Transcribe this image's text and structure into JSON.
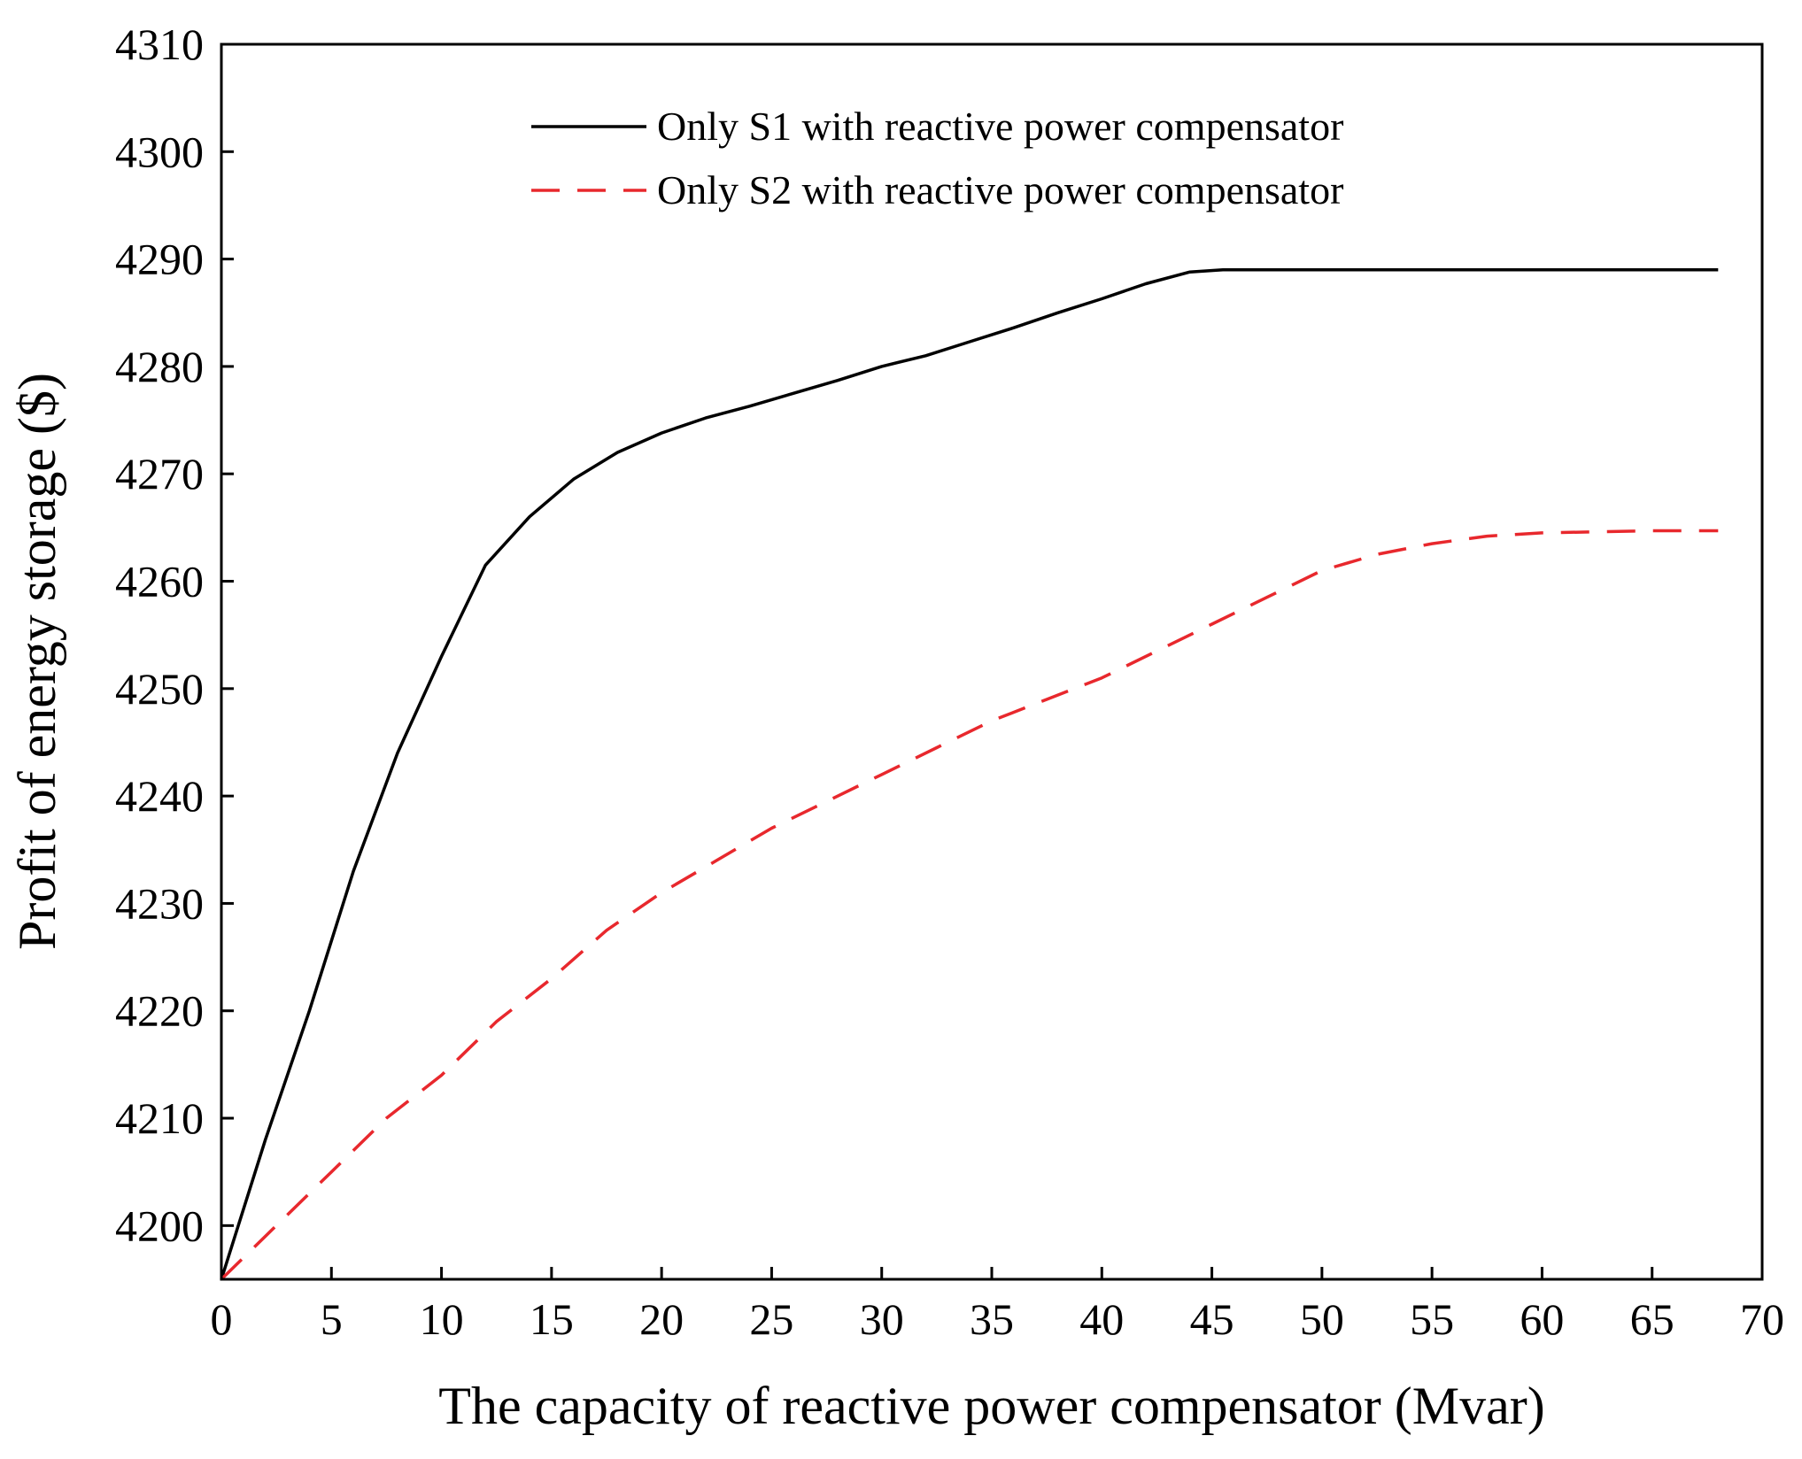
{
  "chart_data": {
    "type": "line",
    "title": "",
    "xlabel": "The capacity of reactive power compensator (Mvar)",
    "ylabel": "Profit of energy storage ($)",
    "xlim": [
      0,
      70
    ],
    "ylim": [
      4195,
      4310
    ],
    "xticks": [
      "0",
      "5",
      "10",
      "15",
      "20",
      "25",
      "30",
      "35",
      "40",
      "45",
      "50",
      "55",
      "60",
      "65",
      "70"
    ],
    "yticks": [
      "4200",
      "4210",
      "4220",
      "4230",
      "4240",
      "4250",
      "4260",
      "4270",
      "4280",
      "4290",
      "4300",
      "4310"
    ],
    "grid": false,
    "legend_position": "top-center",
    "series": [
      {
        "name": "Only S1 with reactive power compensator",
        "color": "#000000",
        "dash": "solid",
        "x": [
          0,
          2,
          4,
          6,
          8,
          10,
          12,
          14,
          16,
          18,
          20,
          22,
          24,
          26,
          28,
          30,
          32,
          34,
          36,
          38,
          40,
          42,
          44,
          45.5,
          50,
          55,
          60,
          65,
          68
        ],
        "y": [
          4195,
          4208,
          4220,
          4233,
          4244,
          4253,
          4261.5,
          4266,
          4269.5,
          4272,
          4273.8,
          4275.2,
          4276.3,
          4277.5,
          4278.7,
          4280,
          4281,
          4282.3,
          4283.6,
          4285,
          4286.3,
          4287.7,
          4288.8,
          4289,
          4289,
          4289,
          4289,
          4289,
          4289
        ]
      },
      {
        "name": "Only S2 with reactive power compensator",
        "color": "#e8282d",
        "dash": "dashed",
        "x": [
          0,
          2.5,
          5,
          7.5,
          10,
          12.5,
          15,
          17.5,
          20,
          22.5,
          25,
          27.5,
          30,
          32.5,
          35,
          37.5,
          40,
          42.5,
          45,
          47.5,
          50,
          52.5,
          55,
          57.5,
          60,
          65,
          68
        ],
        "y": [
          4195,
          4200,
          4205,
          4210,
          4214,
          4219,
          4223,
          4227.5,
          4231,
          4234,
          4237,
          4239.5,
          4242,
          4244.5,
          4247,
          4249,
          4251,
          4253.5,
          4256,
          4258.5,
          4261,
          4262.5,
          4263.5,
          4264.2,
          4264.5,
          4264.7,
          4264.7
        ]
      }
    ]
  }
}
